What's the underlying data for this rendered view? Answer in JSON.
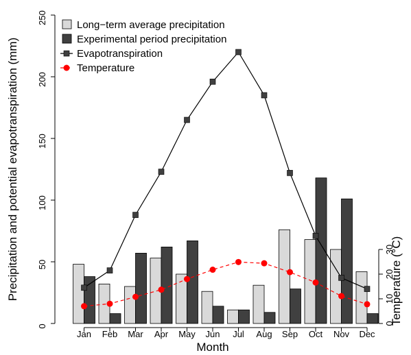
{
  "chart_data": {
    "type": "bar",
    "categories": [
      "Jan",
      "Feb",
      "Mar",
      "Apr",
      "May",
      "Jun",
      "Jul",
      "Aug",
      "Sep",
      "Oct",
      "Nov",
      "Dec"
    ],
    "series": [
      {
        "name": "Long−term average precipitation",
        "kind": "bar",
        "axis": "left",
        "color": "#d9d9d9",
        "values": [
          48,
          32,
          30,
          53,
          40,
          26,
          11,
          31,
          76,
          68,
          60,
          42
        ]
      },
      {
        "name": "Experimental period precipitation",
        "kind": "bar",
        "axis": "left",
        "color": "#404040",
        "values": [
          38,
          8,
          57,
          62,
          67,
          14,
          11,
          9,
          28,
          118,
          101,
          8
        ]
      },
      {
        "name": "Evapotranspiration",
        "kind": "line",
        "marker": "square",
        "axis": "left",
        "color": "#404040",
        "line_color": "#000000",
        "values": [
          29,
          43,
          88,
          123,
          165,
          196,
          220,
          185,
          122,
          71,
          37,
          28
        ]
      },
      {
        "name": "Temperature",
        "kind": "line",
        "marker": "circle",
        "line_style": "dashed",
        "axis": "right",
        "color": "#ff0000",
        "values": [
          7.0,
          8.0,
          10.8,
          13.7,
          18.0,
          21.8,
          24.9,
          24.4,
          20.8,
          16.6,
          11.1,
          7.8
        ]
      }
    ],
    "xlabel": "Month",
    "ylabel": "Precipitation and potential evapotranspiration (mm)",
    "ylabel_right": "Temperature (°C)",
    "ylim": [
      0,
      250
    ],
    "yticks": [
      "0",
      "50",
      "100",
      "150",
      "200",
      "250"
    ],
    "ylim_right": [
      0,
      125
    ],
    "yticks_right": [
      "0",
      "10",
      "20",
      "30"
    ],
    "legend_position": "top-left",
    "grid": false
  }
}
